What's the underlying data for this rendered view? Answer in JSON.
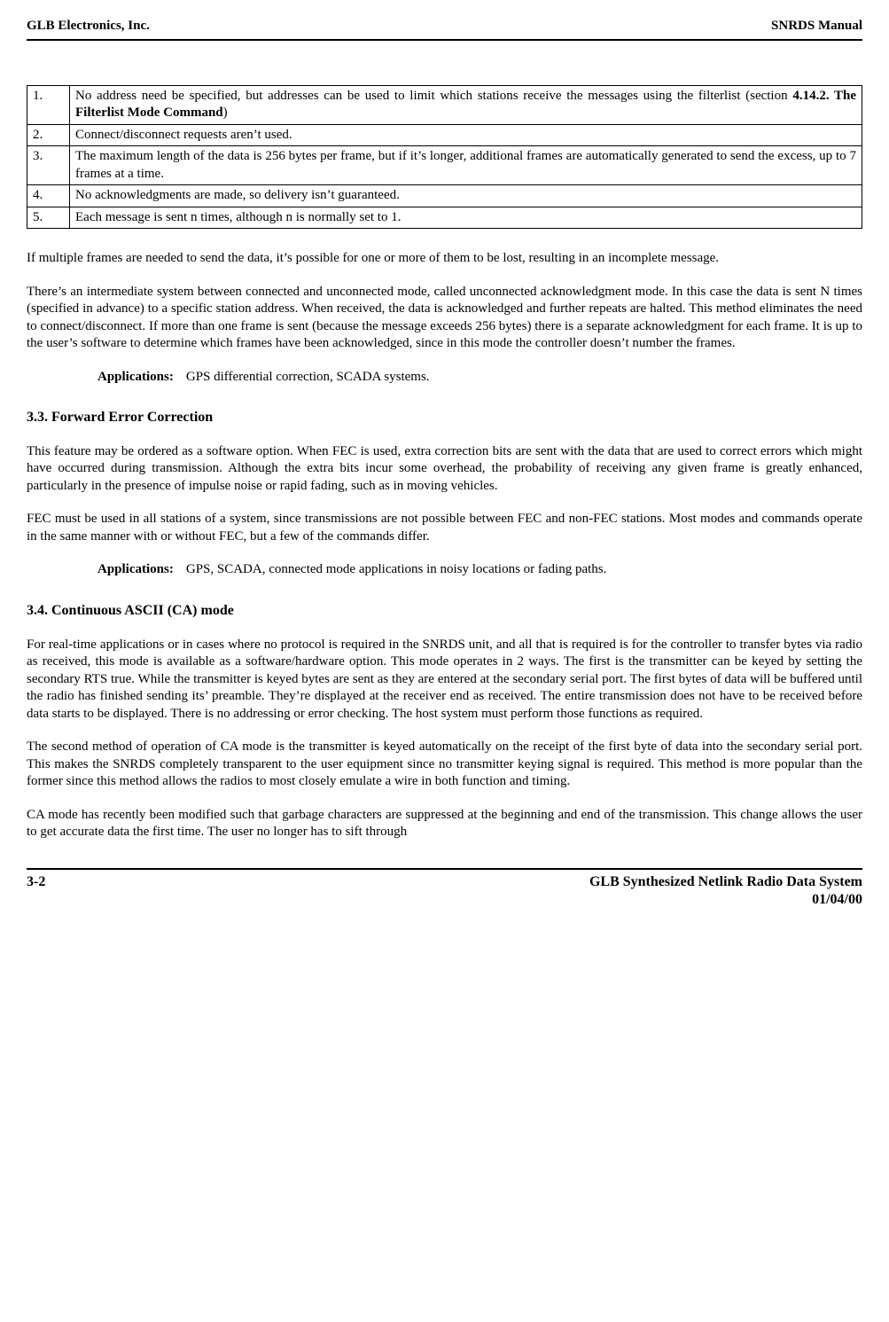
{
  "header": {
    "left": "GLB Electronics, Inc.",
    "right": "SNRDS  Manual"
  },
  "rules": [
    {
      "n": "1.",
      "text_pre": "No address need be specified, but addresses can be used to limit which stations receive the messages using the filterlist (section ",
      "bold": "4.14.2. The Filterlist Mode Command",
      "text_post": ")"
    },
    {
      "n": "2.",
      "text_pre": "Connect/disconnect requests aren’t used.",
      "bold": "",
      "text_post": ""
    },
    {
      "n": "3.",
      "text_pre": "The maximum length of the data is 256 bytes per frame, but if it’s longer, additional frames are automatically generated to send the excess, up to 7 frames at a time.",
      "bold": "",
      "text_post": ""
    },
    {
      "n": "4.",
      "text_pre": "No acknowledgments are made, so delivery isn’t guaranteed.",
      "bold": "",
      "text_post": ""
    },
    {
      "n": "5.",
      "text_pre": "Each message is sent n times, although n is normally set to 1.",
      "bold": "",
      "text_post": ""
    }
  ],
  "p1": "If multiple frames are needed to send the data, it’s possible for one or more of them to be lost, resulting in an incomplete message.",
  "p2": "There’s an intermediate system between connected and unconnected mode, called unconnected acknowledgment mode. In this case the data is sent N times (specified in advance) to a specific station address. When received, the data is acknowledged and further repeats are halted. This method eliminates the need to connect/disconnect. If more than one frame is sent (because the message exceeds 256 bytes) there is a separate acknowledgment for each frame. It is up to the user’s software to determine which frames have been acknowledged, since in this mode the controller doesn’t number the frames.",
  "apps1": {
    "label": "Applications:",
    "text": "GPS differential correction, SCADA systems."
  },
  "h1": "3.3. Forward Error Correction",
  "p3": "This feature may be ordered as a software option. When FEC is used, extra correction bits are sent with the data that are used to correct errors which might have occurred during transmission. Although the extra bits incur some overhead, the probability of receiving any given frame is greatly enhanced, particularly in the presence of impulse noise or rapid fading, such as in moving vehicles.",
  "p4": "FEC must be used in all stations of a system, since transmissions are not possible between FEC and non-FEC stations. Most modes and commands operate in the same manner with or without FEC, but a few of the commands differ.",
  "apps2": {
    "label": "Applications:",
    "text": "GPS, SCADA, connected mode applications in noisy locations or fading paths."
  },
  "h2": "3.4. Continuous ASCII (CA) mode",
  "p5": "For real-time applications or in cases where no protocol is required in the SNRDS unit, and all that is required is for the controller to transfer bytes via radio as received, this mode is available as a software/hardware option. This mode operates in 2 ways. The first is the transmitter can be keyed by setting the secondary RTS true. While the transmitter is keyed bytes are sent as they are entered at the secondary serial port. The first bytes of data will be buffered until the radio has finished sending its’ preamble. They’re displayed at the receiver end as received. The entire transmission does not have to be received before data starts to be displayed. There is no addressing or error checking. The host system must perform those functions as required.",
  "p6": "The second method of operation of CA mode is the transmitter is keyed automatically on the receipt of the first byte of data into the secondary serial port. This makes the SNRDS completely transparent to the user equipment since no transmitter keying signal is required. This method is more popular than the former since this method allows the radios to most closely emulate a wire in both function and timing.",
  "p7": "CA mode has recently been modified such that garbage characters are suppressed at the beginning and end of the transmission. This change allows the user to get accurate data the first time.  The user no longer has to sift through",
  "footer": {
    "left": "3-2",
    "right1": "GLB Synthesized Netlink Radio Data System",
    "right2": "01/04/00"
  }
}
